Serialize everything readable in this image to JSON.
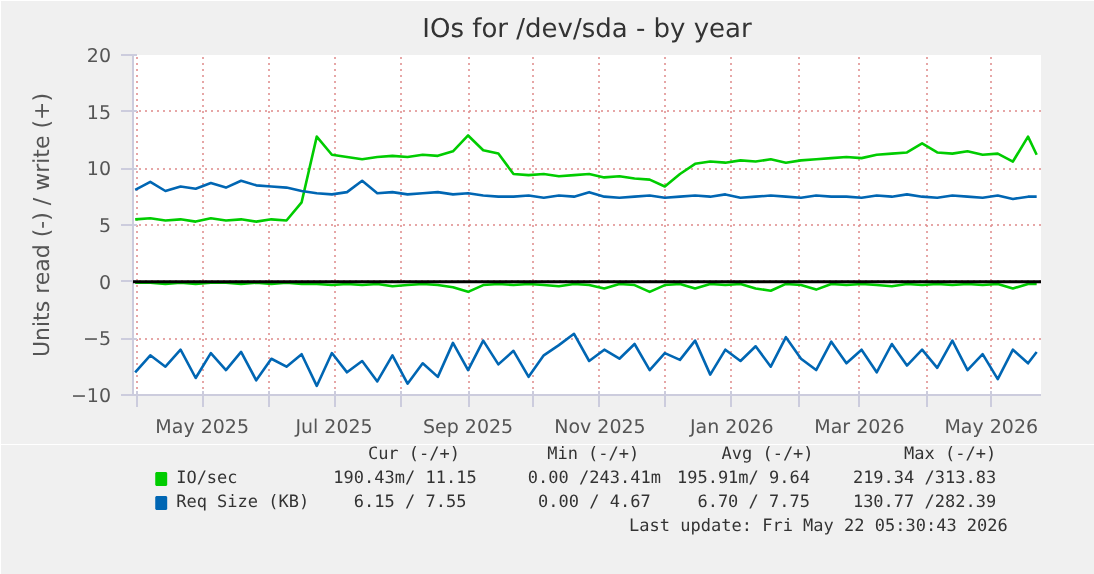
{
  "chart_data": {
    "type": "line",
    "title": "IOs for /dev/sda - by year",
    "ylabel": "Units read (-) / write (+)",
    "x": [
      "2025-03-31",
      "2025-04-07",
      "2025-04-14",
      "2025-04-21",
      "2025-04-28",
      "2025-05-05",
      "2025-05-12",
      "2025-05-19",
      "2025-05-26",
      "2025-06-02",
      "2025-06-09",
      "2025-06-16",
      "2025-06-23",
      "2025-06-30",
      "2025-07-07",
      "2025-07-14",
      "2025-07-21",
      "2025-07-28",
      "2025-08-04",
      "2025-08-11",
      "2025-08-18",
      "2025-08-25",
      "2025-09-01",
      "2025-09-08",
      "2025-09-15",
      "2025-09-22",
      "2025-09-29",
      "2025-10-06",
      "2025-10-13",
      "2025-10-20",
      "2025-10-27",
      "2025-11-03",
      "2025-11-10",
      "2025-11-17",
      "2025-11-24",
      "2025-12-01",
      "2025-12-08",
      "2025-12-15",
      "2025-12-22",
      "2025-12-29",
      "2026-01-05",
      "2026-01-12",
      "2026-01-19",
      "2026-01-26",
      "2026-02-02",
      "2026-02-09",
      "2026-02-16",
      "2026-02-23",
      "2026-03-02",
      "2026-03-09",
      "2026-03-16",
      "2026-03-23",
      "2026-03-30",
      "2026-04-06",
      "2026-04-13",
      "2026-04-20",
      "2026-04-27",
      "2026-05-04",
      "2026-05-11",
      "2026-05-18",
      "2026-05-22"
    ],
    "series": [
      {
        "name": "IO/sec",
        "color": "#00cc00",
        "values": [
          5.5,
          5.6,
          5.4,
          5.5,
          5.3,
          5.6,
          5.4,
          5.5,
          5.3,
          5.5,
          5.4,
          7.0,
          12.8,
          11.2,
          11.0,
          10.8,
          11.0,
          11.1,
          11.0,
          11.2,
          11.1,
          11.5,
          12.9,
          11.6,
          11.3,
          9.5,
          9.4,
          9.5,
          9.3,
          9.4,
          9.5,
          9.2,
          9.3,
          9.1,
          9.0,
          8.4,
          9.5,
          10.4,
          10.6,
          10.5,
          10.7,
          10.6,
          10.8,
          10.5,
          10.7,
          10.8,
          10.9,
          11.0,
          10.9,
          11.2,
          11.3,
          11.4,
          12.2,
          11.4,
          11.3,
          11.5,
          11.2,
          11.3,
          10.6,
          12.8,
          11.2
        ]
      },
      {
        "color": "#00cc00",
        "values": [
          -0.1,
          -0.1,
          -0.2,
          -0.1,
          -0.2,
          -0.1,
          -0.1,
          -0.2,
          -0.1,
          -0.2,
          -0.1,
          -0.2,
          -0.2,
          -0.3,
          -0.2,
          -0.3,
          -0.2,
          -0.4,
          -0.3,
          -0.2,
          -0.3,
          -0.5,
          -0.9,
          -0.3,
          -0.2,
          -0.3,
          -0.2,
          -0.3,
          -0.4,
          -0.2,
          -0.3,
          -0.6,
          -0.2,
          -0.3,
          -0.9,
          -0.3,
          -0.2,
          -0.6,
          -0.2,
          -0.3,
          -0.2,
          -0.6,
          -0.8,
          -0.2,
          -0.3,
          -0.7,
          -0.2,
          -0.3,
          -0.2,
          -0.3,
          -0.4,
          -0.2,
          -0.3,
          -0.2,
          -0.3,
          -0.2,
          -0.3,
          -0.2,
          -0.6,
          -0.2,
          -0.2
        ]
      },
      {
        "name": "Req Size (KB)",
        "color": "#0066b3",
        "values": [
          8.1,
          8.8,
          8.0,
          8.4,
          8.2,
          8.7,
          8.3,
          8.9,
          8.5,
          8.4,
          8.3,
          8.0,
          7.8,
          7.7,
          7.9,
          8.9,
          7.8,
          7.9,
          7.7,
          7.8,
          7.9,
          7.7,
          7.8,
          7.6,
          7.5,
          7.5,
          7.6,
          7.4,
          7.6,
          7.5,
          7.9,
          7.5,
          7.4,
          7.5,
          7.6,
          7.4,
          7.5,
          7.6,
          7.5,
          7.7,
          7.4,
          7.5,
          7.6,
          7.5,
          7.4,
          7.6,
          7.5,
          7.5,
          7.4,
          7.6,
          7.5,
          7.7,
          7.5,
          7.4,
          7.6,
          7.5,
          7.4,
          7.6,
          7.3,
          7.5,
          7.5
        ]
      },
      {
        "color": "#0066b3",
        "values": [
          -8.0,
          -6.5,
          -7.5,
          -6.0,
          -8.5,
          -6.3,
          -7.8,
          -6.2,
          -8.7,
          -6.8,
          -7.5,
          -6.4,
          -9.2,
          -6.3,
          -8.0,
          -7.0,
          -8.8,
          -6.5,
          -9.0,
          -7.2,
          -8.4,
          -5.4,
          -7.8,
          -5.2,
          -7.3,
          -6.1,
          -8.4,
          -6.5,
          -5.6,
          -4.6,
          -7.0,
          -6.0,
          -6.8,
          -5.5,
          -7.8,
          -6.3,
          -6.9,
          -5.2,
          -8.2,
          -6.0,
          -7.0,
          -5.7,
          -7.5,
          -4.9,
          -6.8,
          -7.8,
          -5.3,
          -7.2,
          -6.0,
          -8.0,
          -5.5,
          -7.4,
          -6.0,
          -7.6,
          -5.2,
          -7.8,
          -6.4,
          -8.6,
          -6.0,
          -7.2,
          -6.2
        ]
      }
    ],
    "xlim": [
      "2025-03-30",
      "2026-05-24"
    ],
    "xticks": [
      {
        "value": "2025-04-01",
        "label": null
      },
      {
        "value": "2025-05-01",
        "label": "May 2025"
      },
      {
        "value": "2025-06-01",
        "label": null
      },
      {
        "value": "2025-07-01",
        "label": "Jul 2025"
      },
      {
        "value": "2025-08-01",
        "label": null
      },
      {
        "value": "2025-09-01",
        "label": "Sep 2025"
      },
      {
        "value": "2025-10-01",
        "label": null
      },
      {
        "value": "2025-11-01",
        "label": "Nov 2025"
      },
      {
        "value": "2025-12-01",
        "label": null
      },
      {
        "value": "2026-01-01",
        "label": "Jan 2026"
      },
      {
        "value": "2026-02-01",
        "label": null
      },
      {
        "value": "2026-03-01",
        "label": "Mar 2026"
      },
      {
        "value": "2026-04-01",
        "label": null
      },
      {
        "value": "2026-05-01",
        "label": "May 2026"
      }
    ],
    "ylim": [
      -10,
      20
    ],
    "yticks": [
      -10,
      -5,
      0,
      5,
      10,
      15,
      20
    ],
    "grid": true,
    "legend": "bottom",
    "ref_lines": [
      {
        "axis": "y",
        "value": 0,
        "color": "#000000"
      }
    ],
    "annotations": [
      "Cur (-/+)",
      "Min (-/+)",
      "Avg (-/+)",
      "Max (-/+)",
      "190.43m/ 11.15",
      "0.00 /243.41m",
      "195.91m/  9.64",
      "219.34 /313.83",
      "6.15 /  7.55",
      "0.00 /  4.67",
      "6.70 /  7.75",
      "130.77 /282.39",
      "Last update: Fri May 22 05:30:43 2026"
    ]
  }
}
